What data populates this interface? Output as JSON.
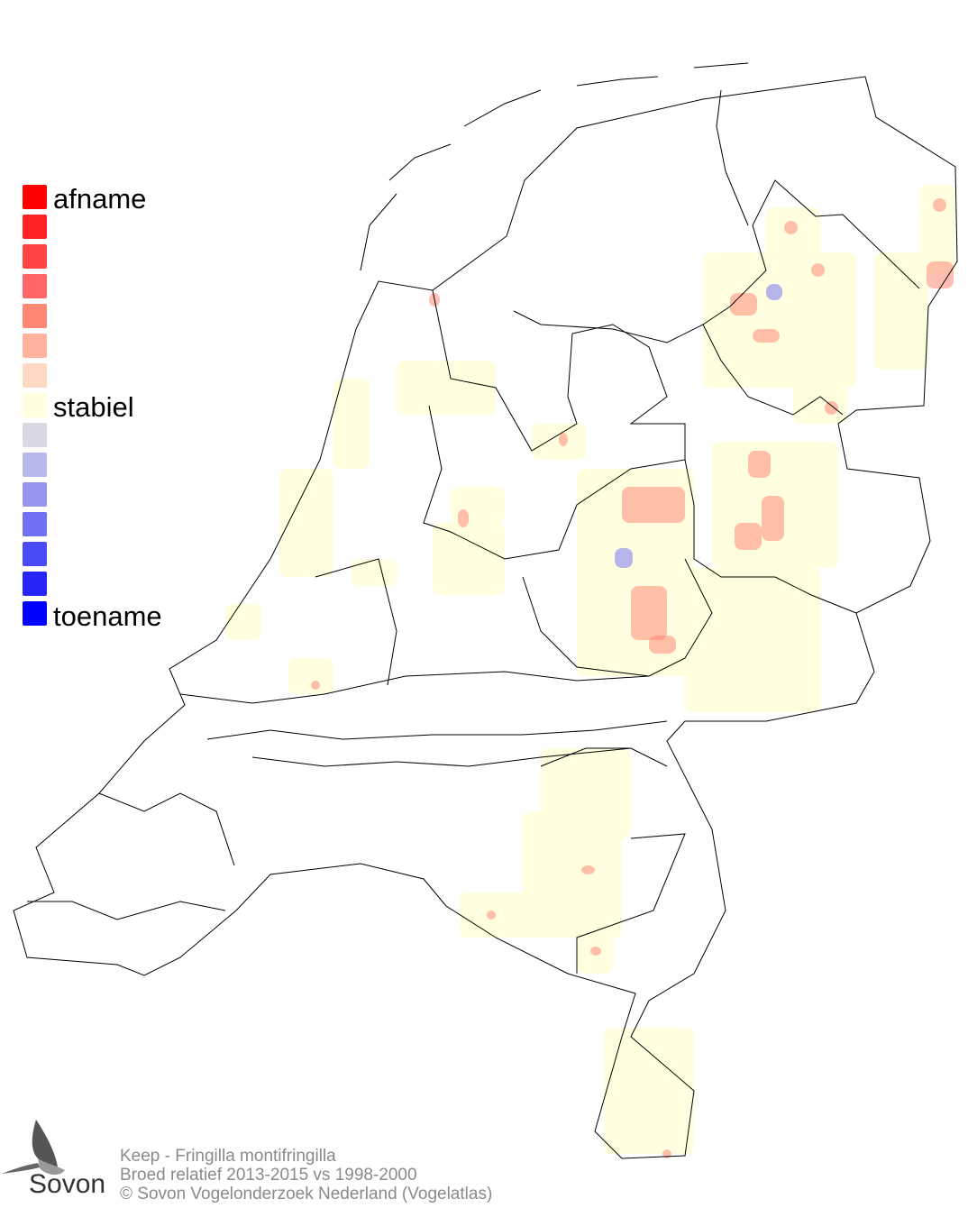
{
  "legend": {
    "top_label": "afname",
    "middle_label": "stabiel",
    "bottom_label": "toename",
    "colors": [
      "#ff0000",
      "#ff2222",
      "#ff4444",
      "#ff6666",
      "#ff8877",
      "#ffb39c",
      "#ffd9c2",
      "#ffffe0",
      "#d9d9e6",
      "#b8b8ea",
      "#9595ee",
      "#7070f2",
      "#4a4af6",
      "#2525fa",
      "#0000ff"
    ]
  },
  "footer": {
    "species": "Keep - Fringilla montifringilla",
    "subtitle": "Broed relatief 2013-2015 vs 1998-2000",
    "copyright": "© Sovon Vogelonderzoek Nederland (Vogelatlas)"
  },
  "logo": {
    "text": "Sovon",
    "icon": "swallow-icon"
  },
  "map": {
    "region": "Netherlands",
    "outline_color": "#000000",
    "stable_color": "#ffffe0",
    "decrease_color": "#ff8877",
    "increase_color": "#9595ee"
  }
}
